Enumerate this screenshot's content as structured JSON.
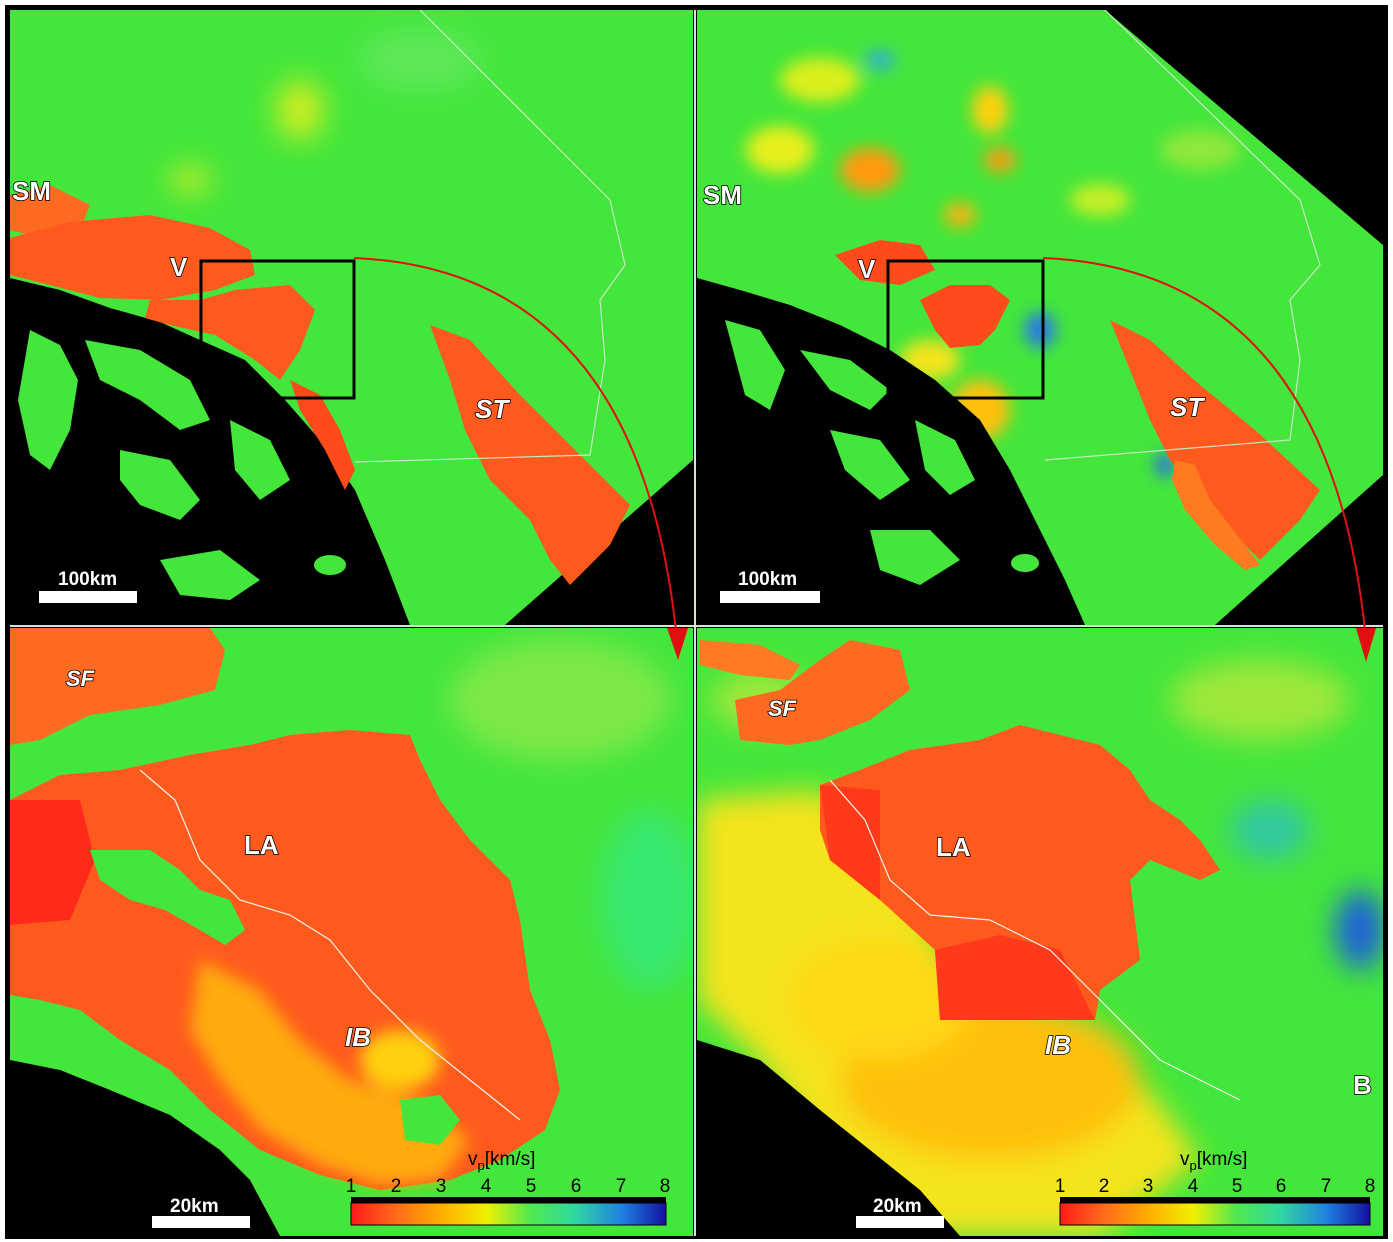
{
  "panels": {
    "top_left": {
      "labels": {
        "sm": "SM",
        "v": "V",
        "st": "ST"
      },
      "scale_bar": "100km"
    },
    "top_right": {
      "labels": {
        "sm": "SM",
        "v": "V",
        "st": "ST"
      },
      "scale_bar": "100km"
    },
    "bottom_left": {
      "labels": {
        "sf": "SF",
        "la": "LA",
        "ib": "IB"
      },
      "scale_bar": "20km",
      "colorbar": {
        "title_main": "v",
        "title_sub": "p",
        "title_unit": "[km/s]",
        "ticks": [
          "1",
          "2",
          "3",
          "4",
          "5",
          "6",
          "7",
          "8"
        ]
      }
    },
    "bottom_right": {
      "labels": {
        "sf": "SF",
        "la": "LA",
        "ib": "IB",
        "panel_letter": "B"
      },
      "scale_bar": "20km",
      "colorbar": {
        "title_main": "v",
        "title_sub": "p",
        "title_unit": "[km/s]",
        "ticks": [
          "1",
          "2",
          "3",
          "4",
          "5",
          "6",
          "7",
          "8"
        ]
      }
    }
  },
  "colors": {
    "background_ocean": "#000000",
    "vp_scale": [
      "#ff1a1a",
      "#ff6a1a",
      "#ffb000",
      "#f0f000",
      "#50e850",
      "#30d8a0",
      "#2080e0",
      "#1010a0"
    ],
    "zoom_box": "#000000",
    "arrow": "#e01010"
  }
}
